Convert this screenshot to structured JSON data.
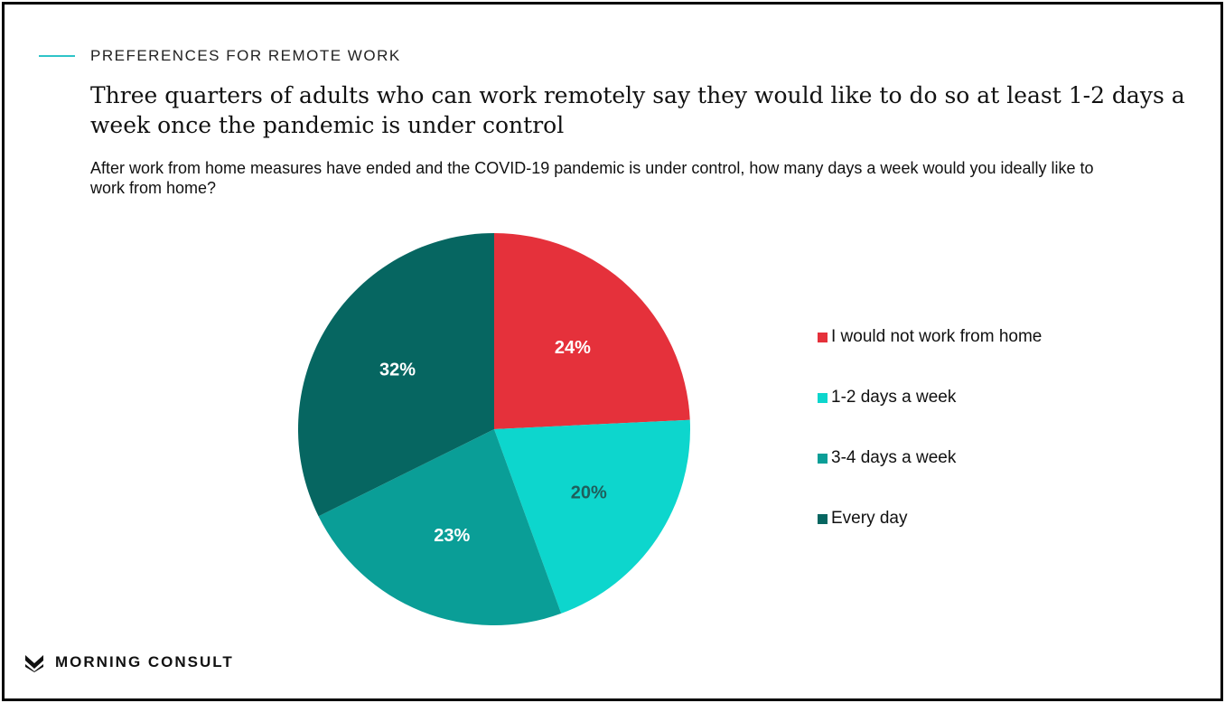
{
  "header": {
    "section_label": "PREFERENCES FOR REMOTE WORK",
    "headline": "Three quarters of adults who can work remotely say they would like to do so at least 1-2 days a week once the pandemic is under control",
    "subtitle": "After work from home measures have ended and the COVID-19 pandemic is under control, how many days a week would you ideally like to work from home?"
  },
  "brand": {
    "name": "MORNING CONSULT",
    "accent_color": "#2ec4c8"
  },
  "chart_data": {
    "type": "pie",
    "title": "",
    "categories": [
      "I would not work from home",
      "1-2 days a week",
      "3-4 days a week",
      "Every day"
    ],
    "values": [
      24,
      20,
      23,
      32
    ],
    "value_labels": [
      "24%",
      "20%",
      "23%",
      "32%"
    ],
    "colors": [
      "#e5313b",
      "#0dd6cd",
      "#0a9e97",
      "#066661"
    ],
    "start_angle_deg": 0,
    "direction": "clockwise",
    "legend_position": "right"
  }
}
